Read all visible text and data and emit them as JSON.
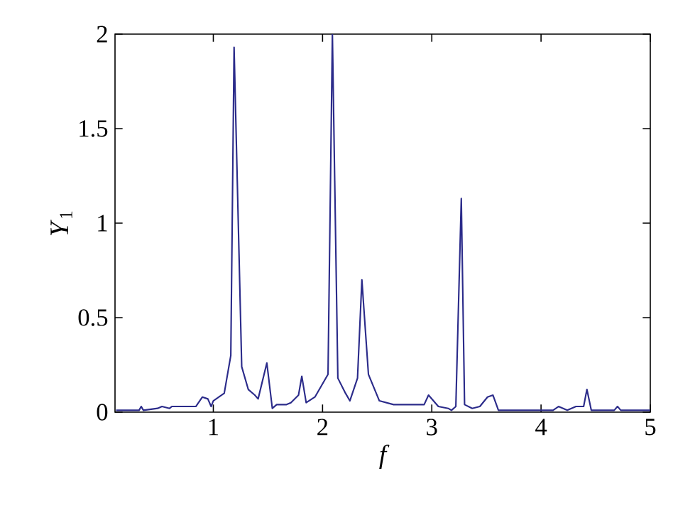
{
  "chart_data": {
    "type": "line",
    "xlabel": "f",
    "ylabel": "*Y*$_{1}$",
    "xlim": [
      0.1,
      5
    ],
    "ylim": [
      0,
      2
    ],
    "xticks": [
      1,
      2,
      3,
      4,
      5
    ],
    "yticks": [
      0,
      0.5,
      1,
      1.5,
      2
    ],
    "grid": false,
    "marker": "none",
    "line_style": "solid",
    "series": [
      {
        "color": "#2b2b8a",
        "x": [
          0.11,
          0.32,
          0.34,
          0.36,
          0.49,
          0.53,
          0.6,
          0.62,
          0.84,
          0.9,
          0.95,
          0.98,
          1.0,
          1.1,
          1.16,
          1.19,
          1.26,
          1.32,
          1.38,
          1.41,
          1.49,
          1.54,
          1.58,
          1.67,
          1.71,
          1.78,
          1.81,
          1.85,
          1.93,
          2.05,
          2.09,
          2.14,
          2.21,
          2.25,
          2.32,
          2.36,
          2.42,
          2.52,
          2.65,
          2.93,
          2.97,
          3.06,
          3.15,
          3.18,
          3.22,
          3.27,
          3.3,
          3.37,
          3.44,
          3.51,
          3.56,
          3.61,
          4.11,
          4.16,
          4.24,
          4.32,
          4.39,
          4.42,
          4.46,
          4.67,
          4.7,
          4.73,
          5.0
        ],
        "values": [
          0.01,
          0.01,
          0.03,
          0.01,
          0.02,
          0.03,
          0.02,
          0.03,
          0.03,
          0.08,
          0.07,
          0.03,
          0.06,
          0.1,
          0.3,
          1.93,
          0.24,
          0.12,
          0.09,
          0.07,
          0.26,
          0.02,
          0.04,
          0.04,
          0.05,
          0.09,
          0.19,
          0.05,
          0.08,
          0.2,
          2.0,
          0.18,
          0.1,
          0.06,
          0.18,
          0.7,
          0.2,
          0.06,
          0.04,
          0.04,
          0.09,
          0.03,
          0.02,
          0.01,
          0.03,
          1.13,
          0.04,
          0.02,
          0.03,
          0.08,
          0.09,
          0.01,
          0.01,
          0.03,
          0.01,
          0.03,
          0.03,
          0.12,
          0.01,
          0.01,
          0.03,
          0.01,
          0.01
        ]
      }
    ]
  }
}
